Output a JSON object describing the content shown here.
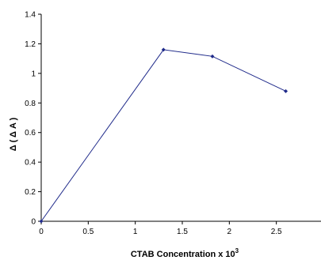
{
  "chart_data": {
    "type": "line",
    "title": "",
    "xlabel": "CTAB Concentration x 10",
    "xlabel_superscript": "3",
    "ylabel": "Δ ( Δ A )",
    "xlim": [
      0,
      3
    ],
    "ylim": [
      0,
      1.4
    ],
    "xticks": [
      "0",
      "0.5",
      "1",
      "1.5",
      "2",
      "2.5"
    ],
    "yticks": [
      "0",
      "0.2",
      "0.4",
      "0.6",
      "0.8",
      "1",
      "1.2",
      "1.4"
    ],
    "grid": false,
    "legend": "none",
    "series": [
      {
        "color": "#1f2a8a",
        "marker": "diamond",
        "x": [
          0,
          1.3,
          1.82,
          2.6
        ],
        "y": [
          0,
          1.16,
          1.115,
          0.88
        ]
      }
    ]
  }
}
